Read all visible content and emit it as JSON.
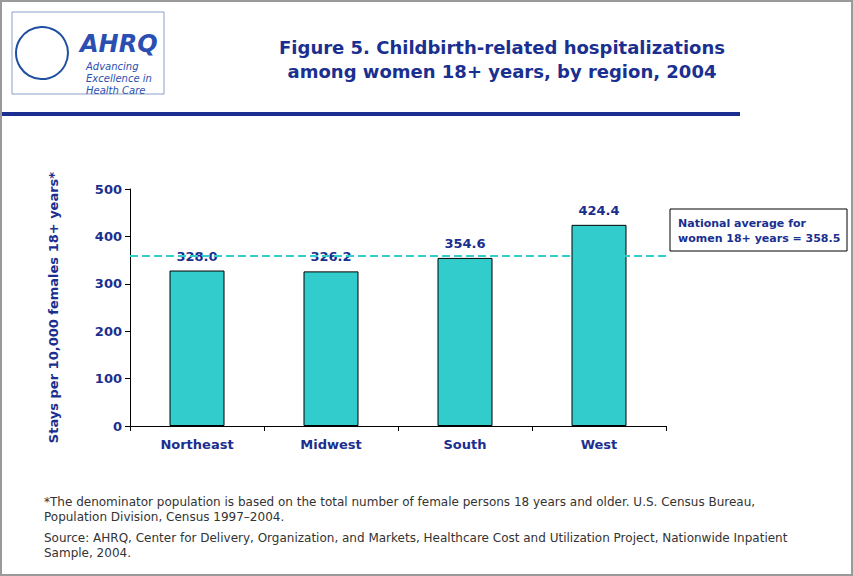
{
  "chart_data": {
    "type": "bar",
    "title": "Figure 5. Childbirth-related hospitalizations\namong women 18+ years, by region, 2004",
    "y_label": "Stays per 10,000 females 18+ years*",
    "categories": [
      "Northeast",
      "Midwest",
      "South",
      "West"
    ],
    "values": [
      328.0,
      326.2,
      354.6,
      424.4
    ],
    "value_labels": [
      "328.0",
      "326.2",
      "354.6",
      "424.4"
    ],
    "data_labels": true,
    "color": "#33cccc",
    "ylim": [
      0,
      500
    ],
    "yticks": [
      0,
      100,
      200,
      300,
      400,
      500
    ],
    "grid": false,
    "annotation": {
      "text": "National average for\nwomen 18+ years = 358.5",
      "value": 358.5
    },
    "footnotes": [
      "*The denominator population is based on the total number of female persons 18 years and older. U.S. Census Bureau, Population Division, Census 1997–2004.",
      "Source: AHRQ, Center for Delivery, Organization, and Markets, Healthcare Cost and Utilization Project, Nationwide Inpatient Sample, 2004."
    ],
    "logo": {
      "name": "AHRQ",
      "tagline": "Advancing\nExcellence in\nHealth Care"
    }
  }
}
